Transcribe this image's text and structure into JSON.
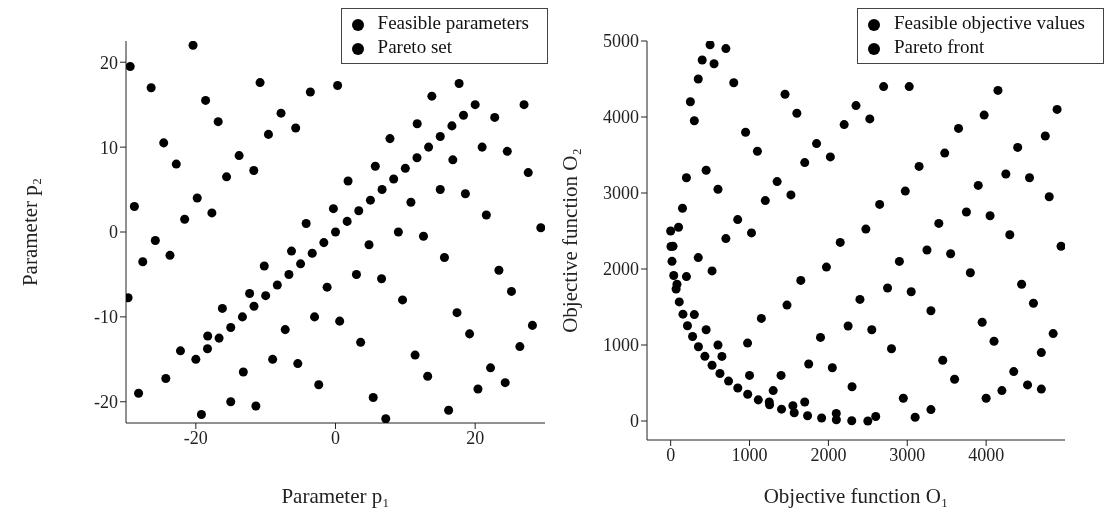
{
  "chart_data": [
    {
      "type": "scatter",
      "xlabel": "Parameter p₁",
      "ylabel": "Parameter p₂",
      "xlim": [
        -30,
        30
      ],
      "ylim": [
        -22.5,
        22.5
      ],
      "xticks": [
        -20,
        0,
        20
      ],
      "yticks": [
        -20,
        -10,
        0,
        10,
        20
      ],
      "grid": false,
      "legend": "top right",
      "marker": "circle",
      "series": [
        {
          "name": "Feasible parameters",
          "color": "#000000",
          "x": [
            -28.2,
            -19.2,
            -15,
            -11.4,
            -2.4,
            5.4,
            7.2,
            16.2,
            20.4,
            24.3,
            -24.3,
            -22.2,
            -13.2,
            -9,
            -5.4,
            3.6,
            11.4,
            13.2,
            22.2,
            26.4,
            -29.7,
            -18.3,
            -16.2,
            -7.2,
            -3,
            0.6,
            9.6,
            17.4,
            19.2,
            28.2,
            -27.6,
            -23.7,
            -12.3,
            -10.2,
            -1.2,
            3,
            6.6,
            15.6,
            23.4,
            25.2,
            -25.8,
            -21.6,
            -17.7,
            -6.3,
            -4.2,
            4.8,
            9,
            12.6,
            21.6,
            29.4,
            -28.8,
            -19.8,
            -15.6,
            -11.7,
            -0.3,
            1.8,
            10.8,
            15,
            18.6,
            27.6,
            -24.6,
            -22.8,
            -13.8,
            -9.6,
            -5.7,
            5.7,
            7.8,
            16.8,
            21,
            24.6,
            -26.4,
            -18.6,
            -16.8,
            -7.8,
            -3.6,
            0.3,
            11.7,
            13.8,
            22.8,
            27,
            -29.4,
            -20.4,
            -10.8,
            17.7
          ],
          "values": [
            -19,
            -21.5,
            -20,
            -20.5,
            -18,
            -19.5,
            -22,
            -21,
            -18.5,
            -17.75,
            -17.25,
            -14,
            -16.5,
            -15,
            -15.5,
            -13,
            -14.5,
            -17,
            -16,
            -13.5,
            -7.75,
            -12.25,
            -9,
            -11.5,
            -10,
            -10.5,
            -8,
            -9.5,
            -12,
            -11,
            -3.5,
            -2.75,
            -7.25,
            -4,
            -6.5,
            -5,
            -5.5,
            -3,
            -4.5,
            -7,
            -1,
            1.5,
            2.25,
            -2.25,
            1,
            -1.5,
            0,
            -0.5,
            2,
            0.5,
            3,
            4,
            6.5,
            7.25,
            2.75,
            6,
            3.5,
            5,
            4.5,
            7,
            10.5,
            8,
            9,
            11.5,
            12.25,
            7.75,
            11,
            8.5,
            10,
            9.5,
            17,
            15.5,
            13,
            14,
            16.5,
            17.25,
            12.75,
            16,
            13.5,
            15,
            19.5,
            22,
            17.6,
            17.5
          ]
        },
        {
          "name": "Pareto set",
          "color": "#000000",
          "x": [
            -20,
            -18.33,
            -16.67,
            -15,
            -13.33,
            -11.67,
            -10,
            -8.33,
            -6.67,
            -5,
            -3.33,
            -1.67,
            0,
            1.67,
            3.33,
            5,
            6.67,
            8.33,
            10,
            11.67,
            13.33,
            15,
            16.67,
            18.33,
            20
          ],
          "values": [
            -15,
            -13.75,
            -12.5,
            -11.25,
            -10,
            -8.75,
            -7.5,
            -6.25,
            -5,
            -3.75,
            -2.5,
            -1.25,
            0,
            1.25,
            2.5,
            3.75,
            5,
            6.25,
            7.5,
            8.75,
            10,
            11.25,
            12.5,
            13.75,
            15
          ]
        }
      ]
    },
    {
      "type": "scatter",
      "xlabel": "Objective function O₁",
      "ylabel": "Objective function O₂",
      "xlim": [
        -300,
        5000
      ],
      "ylim": [
        -250,
        5000
      ],
      "xticks": [
        0,
        1000,
        2000,
        3000,
        4000
      ],
      "yticks": [
        0,
        1000,
        2000,
        3000,
        4000,
        5000
      ],
      "grid": false,
      "legend": "top right",
      "marker": "circle",
      "series": [
        {
          "name": "Feasible objective values",
          "color": "#000000",
          "x": [
            1250,
            1550,
            2300,
            2950,
            3100,
            4200,
            4525,
            650,
            1400,
            1750,
            2050,
            2800,
            3450,
            3600,
            4350,
            4700,
            975,
            1150,
            1900,
            2250,
            2550,
            3300,
            3950,
            4100,
            4850,
            200,
            525,
            1475,
            1650,
            2400,
            2750,
            3050,
            3800,
            4450,
            4600,
            350,
            700,
            1025,
            1975,
            2150,
            2900,
            3250,
            3550,
            4300,
            4950,
            100,
            850,
            1200,
            1525,
            2475,
            2650,
            3400,
            3750,
            4050,
            4800,
            450,
            600,
            1350,
            1700,
            2025,
            2975,
            3150,
            3900,
            4250,
            4550,
            300,
            950,
            1100,
            1850,
            2200,
            2525,
            3475,
            3650,
            4400,
            4750,
            250,
            800,
            1450,
            1600,
            2350,
            2700,
            3025,
            3975,
            4150,
            4900,
            400,
            550,
            30,
            80,
            300,
            600,
            1000,
            1700,
            2600,
            3300,
            4000,
            4700,
            200,
            350,
            700,
            500,
            150,
            450,
            1300,
            2100
          ],
          "values": [
            250,
            200,
            450,
            300,
            50,
            400,
            475,
            850,
            600,
            750,
            700,
            950,
            800,
            550,
            650,
            900,
            1025,
            1350,
            1100,
            1250,
            1200,
            1450,
            1300,
            1050,
            1150,
            1900,
            1975,
            1525,
            1850,
            1600,
            1750,
            1700,
            1950,
            1800,
            1550,
            2150,
            2400,
            2475,
            2025,
            2350,
            2100,
            2250,
            2200,
            2450,
            2300,
            2550,
            2650,
            2900,
            2975,
            2525,
            2850,
            2600,
            2750,
            2700,
            2950,
            3300,
            3050,
            3150,
            3400,
            3475,
            3025,
            3350,
            3100,
            3250,
            3200,
            3950,
            3800,
            3550,
            3650,
            3900,
            3975,
            3525,
            3850,
            3600,
            3750,
            4200,
            4450,
            4300,
            4050,
            4150,
            4400,
            4400,
            4025,
            4350,
            4100,
            4750,
            4700,
            2300,
            1800,
            1400,
            1000,
            600,
            250,
            60,
            150,
            300,
            420,
            3200,
            4500,
            4900,
            4950,
            2800,
            1200,
            400,
            100
          ]
        },
        {
          "name": "Pareto front",
          "color": "#000000",
          "x": [
            0,
            4,
            17,
            39,
            69,
            109,
            156,
            213,
            278,
            352,
            434,
            525,
            625,
            734,
            851,
            977,
            1111,
            1254,
            1406,
            1567,
            1736,
            1914,
            2101,
            2296,
            2500
          ],
          "values": [
            2500,
            2296,
            2101,
            1914,
            1736,
            1567,
            1406,
            1254,
            1111,
            977,
            851,
            734,
            625,
            525,
            434,
            352,
            278,
            213,
            156,
            109,
            69,
            39,
            17,
            4,
            0
          ]
        }
      ]
    }
  ]
}
